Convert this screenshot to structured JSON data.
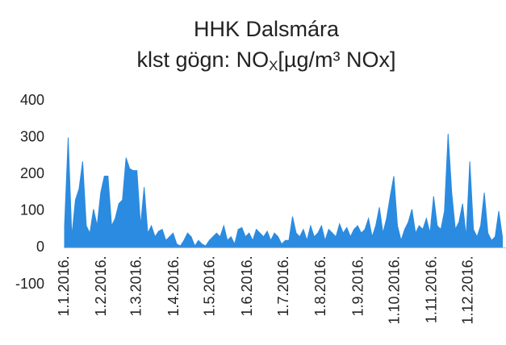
{
  "chart_data": {
    "type": "area",
    "title": "HHK Dalsmára",
    "subtitle": [
      "klst gögn: NO",
      "X",
      "[µg/m³ NOx]"
    ],
    "color": "#2b8be0",
    "grid": false,
    "ylim": [
      -100,
      400
    ],
    "yticks": [
      -100,
      0,
      100,
      200,
      300,
      400
    ],
    "xlim": [
      0,
      366
    ],
    "xticks": [
      {
        "value": 0,
        "label": "1.1.2016."
      },
      {
        "value": 31,
        "label": "1.2.2016."
      },
      {
        "value": 60,
        "label": "1.3.2016."
      },
      {
        "value": 91,
        "label": "1.4.2016."
      },
      {
        "value": 121,
        "label": "1.5.2016."
      },
      {
        "value": 152,
        "label": "1.6.2016."
      },
      {
        "value": 182,
        "label": "1.7.2016."
      },
      {
        "value": 213,
        "label": "1.8.2016."
      },
      {
        "value": 244,
        "label": "1.9.2016."
      },
      {
        "value": 274,
        "label": "1.10.2016."
      },
      {
        "value": 305,
        "label": "1.11.2016."
      },
      {
        "value": 335,
        "label": "1.12.2016."
      }
    ],
    "x": [
      0,
      3,
      6,
      9,
      12,
      15,
      18,
      21,
      24,
      27,
      30,
      33,
      36,
      39,
      42,
      45,
      48,
      51,
      54,
      57,
      60,
      63,
      66,
      69,
      72,
      75,
      78,
      81,
      84,
      87,
      90,
      93,
      96,
      99,
      102,
      105,
      108,
      111,
      114,
      117,
      120,
      123,
      126,
      129,
      132,
      135,
      138,
      141,
      144,
      147,
      150,
      153,
      156,
      159,
      162,
      165,
      168,
      171,
      174,
      177,
      180,
      183,
      186,
      189,
      192,
      195,
      198,
      201,
      204,
      207,
      210,
      213,
      216,
      219,
      222,
      225,
      228,
      231,
      234,
      237,
      240,
      243,
      246,
      249,
      252,
      255,
      258,
      261,
      264,
      267,
      270,
      273,
      276,
      279,
      282,
      285,
      288,
      291,
      294,
      297,
      300,
      303,
      306,
      309,
      312,
      315,
      318,
      321,
      324,
      327,
      330,
      333,
      336,
      339,
      342,
      345,
      348,
      351,
      354,
      357,
      360,
      363
    ],
    "values": [
      60,
      300,
      30,
      130,
      160,
      235,
      60,
      40,
      105,
      60,
      150,
      195,
      195,
      60,
      80,
      120,
      130,
      245,
      215,
      210,
      210,
      60,
      165,
      40,
      60,
      30,
      45,
      50,
      20,
      30,
      40,
      10,
      5,
      20,
      40,
      30,
      5,
      20,
      10,
      5,
      20,
      30,
      40,
      30,
      60,
      20,
      30,
      10,
      50,
      55,
      30,
      40,
      20,
      50,
      40,
      30,
      45,
      20,
      40,
      30,
      10,
      20,
      20,
      85,
      40,
      30,
      50,
      20,
      60,
      30,
      40,
      60,
      20,
      50,
      40,
      30,
      65,
      40,
      55,
      30,
      50,
      60,
      40,
      50,
      80,
      30,
      60,
      110,
      40,
      80,
      140,
      195,
      60,
      20,
      50,
      70,
      105,
      40,
      60,
      50,
      80,
      40,
      140,
      60,
      50,
      100,
      310,
      150,
      50,
      70,
      120,
      30,
      235,
      50,
      30,
      60,
      150,
      40,
      20,
      30,
      100,
      30
    ]
  }
}
